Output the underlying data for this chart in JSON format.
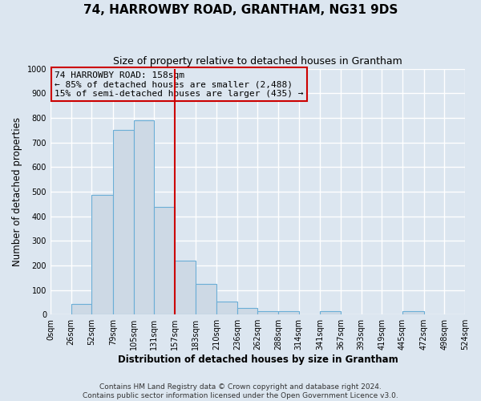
{
  "title": "74, HARROWBY ROAD, GRANTHAM, NG31 9DS",
  "subtitle": "Size of property relative to detached houses in Grantham",
  "xlabel": "Distribution of detached houses by size in Grantham",
  "ylabel": "Number of detached properties",
  "bar_edges": [
    0,
    26,
    52,
    79,
    105,
    131,
    157,
    183,
    210,
    236,
    262,
    288,
    314,
    341,
    367,
    393,
    419,
    445,
    472,
    498,
    524
  ],
  "bar_heights": [
    0,
    43,
    485,
    750,
    790,
    437,
    220,
    125,
    53,
    28,
    13,
    13,
    0,
    13,
    0,
    0,
    0,
    13,
    0,
    0
  ],
  "bar_color": "#cdd9e5",
  "bar_edge_color": "#6baed6",
  "vline_x": 157,
  "vline_color": "#cc0000",
  "ylim": [
    0,
    1000
  ],
  "yticks": [
    0,
    100,
    200,
    300,
    400,
    500,
    600,
    700,
    800,
    900,
    1000
  ],
  "xtick_labels": [
    "0sqm",
    "26sqm",
    "52sqm",
    "79sqm",
    "105sqm",
    "131sqm",
    "157sqm",
    "183sqm",
    "210sqm",
    "236sqm",
    "262sqm",
    "288sqm",
    "314sqm",
    "341sqm",
    "367sqm",
    "393sqm",
    "419sqm",
    "445sqm",
    "472sqm",
    "498sqm",
    "524sqm"
  ],
  "annotation_text_line1": "74 HARROWBY ROAD: 158sqm",
  "annotation_text_line2": "← 85% of detached houses are smaller (2,488)",
  "annotation_text_line3": "15% of semi-detached houses are larger (435) →",
  "annotation_box_color": "#cc0000",
  "footer_line1": "Contains HM Land Registry data © Crown copyright and database right 2024.",
  "footer_line2": "Contains public sector information licensed under the Open Government Licence v3.0.",
  "bg_color": "#dce6f0",
  "plot_bg_color": "#dce6f0",
  "grid_color": "#ffffff",
  "title_fontsize": 11,
  "subtitle_fontsize": 9,
  "axis_label_fontsize": 8.5,
  "tick_fontsize": 7,
  "footer_fontsize": 6.5,
  "annotation_fontsize": 8
}
